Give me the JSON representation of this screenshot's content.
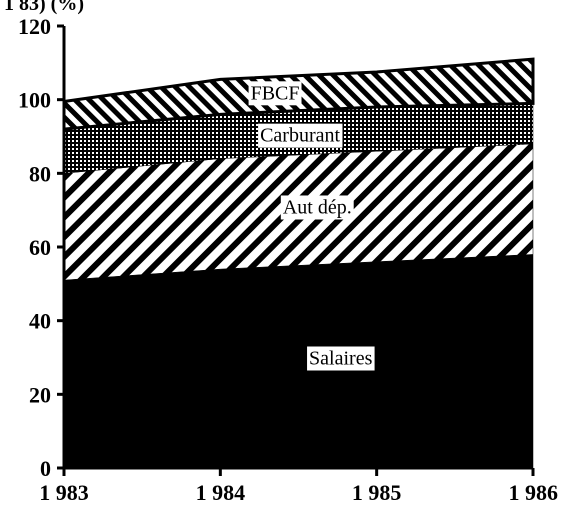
{
  "chart_data": {
    "type": "area",
    "stacked": true,
    "x": [
      1983,
      1984,
      1985,
      1986
    ],
    "x_tick_labels": [
      "1 983",
      "1 984",
      "1 985",
      "1 986"
    ],
    "y_tick_labels": [
      "0",
      "20",
      "40",
      "60",
      "80",
      "100",
      "120"
    ],
    "ylim": [
      0,
      120
    ],
    "y_unit_label": "1 83) (%)",
    "series": [
      {
        "name": "Salaires",
        "values": [
          51,
          54,
          56,
          58
        ],
        "pattern": "solid-black"
      },
      {
        "name": "Aut dép.",
        "values": [
          29,
          30,
          30,
          30
        ],
        "pattern": "diagonal-hatch"
      },
      {
        "name": "Carburant",
        "values": [
          12,
          12,
          12,
          11
        ],
        "pattern": "dense-dots"
      },
      {
        "name": "FBCF",
        "values": [
          7.5,
          9.5,
          9.5,
          12
        ],
        "pattern": "reverse-diagonal-hatch"
      }
    ],
    "labels_on_chart": true,
    "grid": false
  }
}
